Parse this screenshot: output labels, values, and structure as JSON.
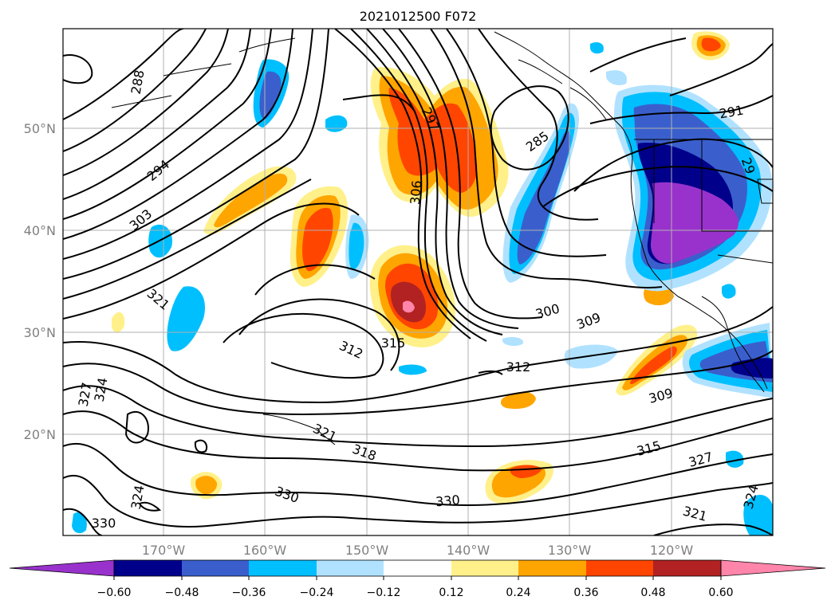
{
  "title": "2021012500 F072",
  "lat_labels": [
    "50°N",
    "40°N",
    "30°N",
    "20°N"
  ],
  "lon_labels": [
    "170°W",
    "160°W",
    "150°W",
    "140°W",
    "130°W",
    "120°W"
  ],
  "colorbar": {
    "ticks": [
      "−0.60",
      "−0.48",
      "−0.36",
      "−0.24",
      "−0.12",
      "0.12",
      "0.24",
      "0.36",
      "0.48",
      "0.60"
    ],
    "colors": [
      "#9932cc",
      "#00008b",
      "#3a5fcd",
      "#00bfff",
      "#b0e2ff",
      "#ffffff",
      "#fff08a",
      "#ffa500",
      "#ff4500",
      "#b22222",
      "#ff85aa"
    ]
  },
  "contour_labels": [
    "288",
    "294",
    "303",
    "321",
    "297",
    "306",
    "285",
    "291",
    "29",
    "300",
    "309",
    "315",
    "312",
    "312",
    "327",
    "324",
    "321",
    "318",
    "309",
    "315",
    "327",
    "324",
    "330",
    "330",
    "324",
    "321",
    "330"
  ],
  "colors": {
    "coast": "#000000",
    "grid": "#b0b0b0",
    "contour": "#000000"
  }
}
